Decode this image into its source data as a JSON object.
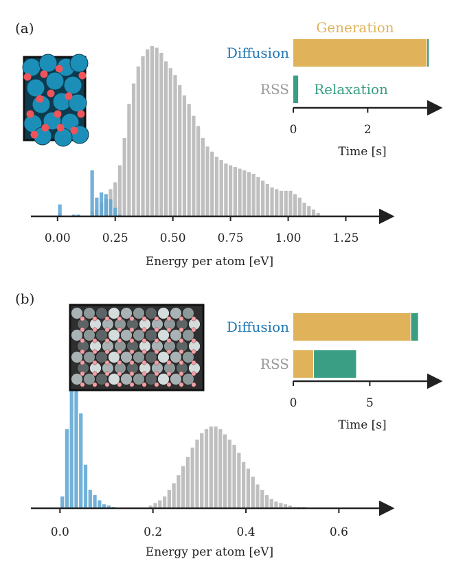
{
  "colors": {
    "diffusion": "#1f77b4",
    "diffusion_bar": "#5aa3d2",
    "diffusion_dark": "#3a7fb0",
    "rss": "#a9a9a9",
    "rss_label": "#9a9a9a",
    "generation": "#e0b35a",
    "relaxation": "#3a9e84",
    "axis": "#222222"
  },
  "chart_data": [
    {
      "panel": "(a)",
      "type": "bar",
      "xlabel": "Energy per atom [eV]",
      "xticks": [
        "0.00",
        "0.25",
        "0.50",
        "0.75",
        "1.00",
        "1.25"
      ],
      "xlim": [
        -0.05,
        1.35
      ],
      "x_tick_values": [
        0.0,
        0.25,
        0.5,
        0.75,
        1.0,
        1.25
      ],
      "bin_width": 0.02,
      "series": [
        {
          "label_ref": "rss",
          "x": [
            0.01,
            0.15,
            0.17,
            0.19,
            0.21,
            0.23,
            0.25,
            0.27,
            0.29,
            0.31,
            0.33,
            0.35,
            0.37,
            0.39,
            0.41,
            0.43,
            0.45,
            0.47,
            0.49,
            0.51,
            0.53,
            0.55,
            0.57,
            0.59,
            0.61,
            0.63,
            0.65,
            0.67,
            0.69,
            0.71,
            0.73,
            0.75,
            0.77,
            0.79,
            0.81,
            0.83,
            0.85,
            0.87,
            0.89,
            0.91,
            0.93,
            0.95,
            0.97,
            0.99,
            1.01,
            1.03,
            1.05,
            1.07,
            1.09,
            1.11,
            1.13
          ],
          "values": [
            2,
            3,
            4,
            8,
            10,
            16,
            20,
            30,
            46,
            66,
            78,
            88,
            94,
            98,
            100,
            99,
            96,
            91,
            87,
            83,
            77,
            71,
            66,
            59,
            53,
            46,
            41,
            38,
            35,
            33,
            31,
            30,
            29,
            28,
            27,
            26,
            25,
            23,
            21,
            19,
            17,
            16,
            15,
            15,
            15,
            13,
            11,
            8,
            6,
            4,
            2
          ]
        },
        {
          "label_ref": "diffusion",
          "x": [
            0.01,
            0.07,
            0.09,
            0.15,
            0.17,
            0.19,
            0.21,
            0.23,
            0.25,
            0.27
          ],
          "values": [
            7,
            1,
            1,
            27,
            11,
            14,
            13,
            10,
            5,
            1
          ]
        }
      ],
      "inset": {
        "type": "bar-horizontal",
        "xlabel": "Time [s]",
        "xticks": [
          "0",
          "2"
        ],
        "x_tick_values": [
          0,
          2
        ],
        "xlim": [
          0,
          3.6
        ],
        "rows": [
          {
            "label": "Diffusion",
            "segments": [
              {
                "name": "Generation",
                "value": 3.6
              },
              {
                "name": "Relaxation",
                "value": 0.06
              }
            ]
          },
          {
            "label": "RSS",
            "segments": [
              {
                "name": "Relaxation",
                "value": 0.15
              }
            ]
          }
        ],
        "legend_top": "Generation",
        "legend_mid": "Relaxation"
      }
    },
    {
      "panel": "(b)",
      "type": "bar",
      "xlabel": "Energy per atom [eV]",
      "xticks": [
        "0.0",
        "0.2",
        "0.4",
        "0.6"
      ],
      "x_tick_values": [
        0.0,
        0.2,
        0.4,
        0.6
      ],
      "xlim": [
        -0.03,
        0.72
      ],
      "bin_width": 0.01,
      "series": [
        {
          "label_ref": "rss",
          "x": [
            0.195,
            0.205,
            0.215,
            0.225,
            0.235,
            0.245,
            0.255,
            0.265,
            0.275,
            0.285,
            0.295,
            0.305,
            0.315,
            0.325,
            0.335,
            0.345,
            0.355,
            0.365,
            0.375,
            0.385,
            0.395,
            0.405,
            0.415,
            0.425,
            0.435,
            0.445,
            0.455,
            0.465,
            0.475,
            0.485,
            0.495,
            0.505,
            0.515,
            0.525
          ],
          "values": [
            2,
            4,
            6,
            9,
            14,
            19,
            25,
            32,
            39,
            46,
            52,
            57,
            60,
            62,
            62,
            60,
            56,
            52,
            48,
            42,
            35,
            30,
            24,
            18,
            14,
            10,
            7,
            5,
            4,
            3,
            2,
            1,
            1,
            1
          ]
        },
        {
          "label_ref": "diffusion",
          "x": [
            0.005,
            0.015,
            0.025,
            0.035,
            0.045,
            0.055,
            0.065,
            0.075,
            0.085,
            0.095,
            0.105,
            0.115
          ],
          "values": [
            9,
            60,
            100,
            92,
            72,
            33,
            14,
            10,
            6,
            3,
            2,
            1
          ]
        }
      ],
      "inset": {
        "type": "bar-horizontal",
        "xlabel": "Time [s]",
        "xticks": [
          "0",
          "5"
        ],
        "x_tick_values": [
          0,
          5
        ],
        "xlim": [
          0,
          8.8
        ],
        "rows": [
          {
            "label": "Diffusion",
            "segments": [
              {
                "name": "Generation",
                "value": 7.7
              },
              {
                "name": "Relaxation",
                "value": 0.5
              }
            ]
          },
          {
            "label": "RSS",
            "segments": [
              {
                "name": "Generation",
                "value": 1.35
              },
              {
                "name": "Relaxation",
                "value": 2.8
              }
            ]
          }
        ]
      }
    }
  ],
  "labels": {
    "panel_a": "(a)",
    "panel_b": "(b)",
    "diffusion": "Diffusion",
    "rss": "RSS",
    "generation": "Generation",
    "relaxation": "Relaxation"
  }
}
